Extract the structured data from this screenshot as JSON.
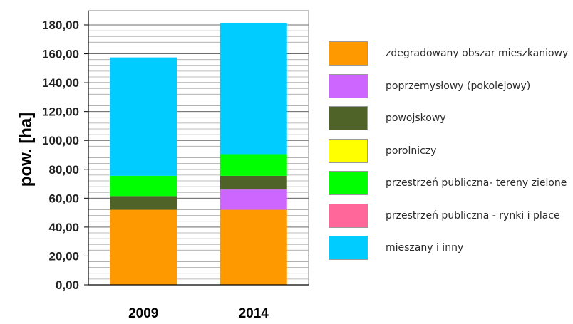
{
  "chart_data": {
    "type": "bar",
    "stacked": true,
    "title": "",
    "xlabel": "",
    "ylabel": "pow. [ha]",
    "ylim": [
      0,
      180
    ],
    "ytick_step": 20,
    "minor_grid_step": 4,
    "yticks": [
      "0,00",
      "20,00",
      "40,00",
      "60,00",
      "80,00",
      "100,00",
      "120,00",
      "140,00",
      "160,00",
      "180,00"
    ],
    "categories": [
      "2009",
      "2014"
    ],
    "grid": true,
    "legend_position": "right",
    "series": [
      {
        "name": "zdegradowany obszar mieszkaniowy",
        "color": "#FF9900",
        "values": [
          52,
          52
        ]
      },
      {
        "name": "poprzemysłowy (pokolejowy)",
        "color": "#CC66FF",
        "values": [
          0,
          14
        ]
      },
      {
        "name": "powojskowy",
        "color": "#4F6228",
        "values": [
          9.5,
          9.5
        ]
      },
      {
        "name": "porolniczy",
        "color": "#FFFF00",
        "values": [
          0,
          0
        ]
      },
      {
        "name": "przestrzeń publiczna- tereny zielone",
        "color": "#00FF00",
        "values": [
          14,
          15
        ]
      },
      {
        "name": "przestrzeń publiczna - rynki i place",
        "color": "#FF6699",
        "values": [
          0,
          0
        ]
      },
      {
        "name": "mieszany i inny",
        "color": "#00CCFF",
        "values": [
          82,
          91
        ]
      }
    ]
  }
}
